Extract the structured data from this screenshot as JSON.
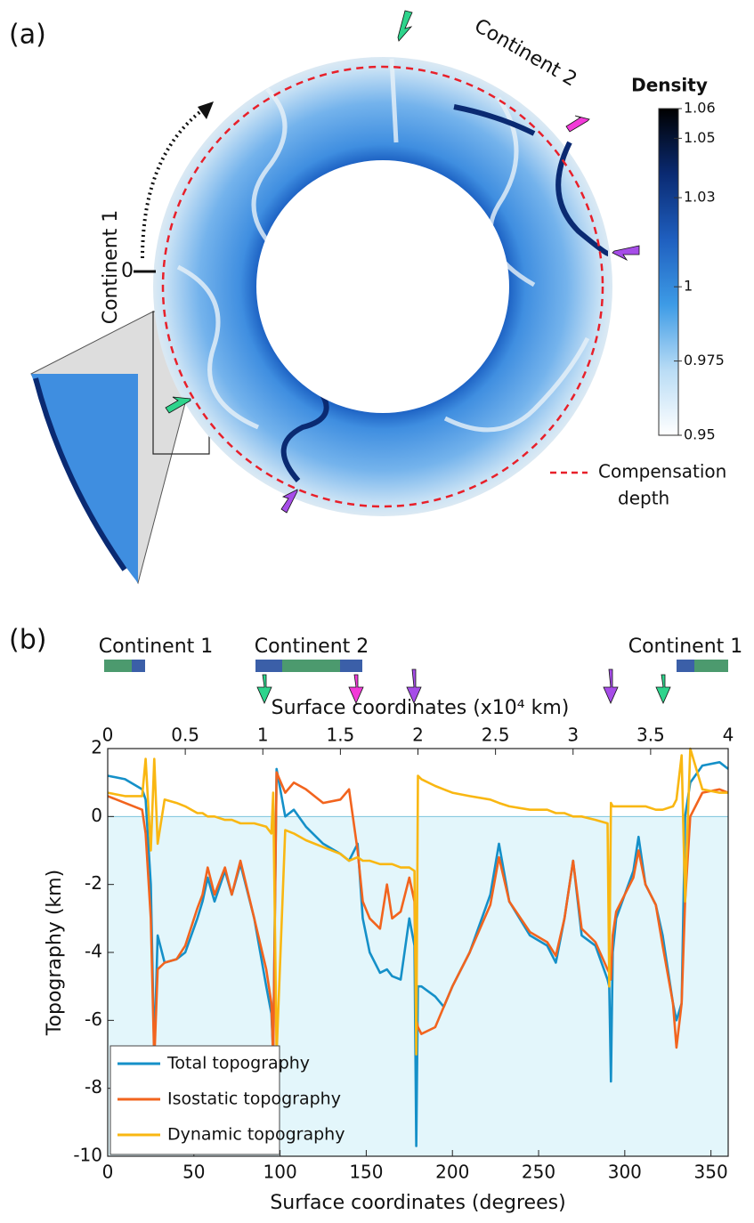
{
  "figure": {
    "panel_a_label": "(a)",
    "panel_b_label": "(b)",
    "continent_2_label": "Continent 2",
    "continent_1_label": "Continent 1",
    "origin_label": "0",
    "compensation_label": [
      "Compensation",
      "depth"
    ]
  },
  "chart_data": [
    {
      "type": "colorbar",
      "title": "Density",
      "clim": [
        0.95,
        1.06
      ],
      "ticks": [
        0.95,
        0.975,
        1,
        1.03,
        1.05,
        1.06
      ],
      "colors": [
        "#ffffff",
        "#b9dcf5",
        "#3d9be6",
        "#1f5fbf",
        "#0a2a72",
        "#000000"
      ]
    },
    {
      "type": "line",
      "xlabel": "Surface coordinates (degrees)",
      "ylabel": "Topography (km)",
      "x2label": "Surface coordinates (x10⁴ km)",
      "annotations": [
        "Continent 1",
        "Continent 2",
        "Continent 1"
      ],
      "xlim": [
        0,
        360
      ],
      "xticks": [
        0,
        50,
        100,
        150,
        200,
        250,
        300,
        350
      ],
      "x2lim": [
        0,
        4
      ],
      "x2ticks": [
        0,
        0.5,
        1,
        1.5,
        2,
        2.5,
        3,
        3.5,
        4
      ],
      "ylim": [
        -10,
        2
      ],
      "yticks": [
        -10,
        -8,
        -6,
        -4,
        -2,
        0,
        2
      ],
      "below_zero_fill": "#e3f6fb",
      "legend": "lower left",
      "x": [
        0,
        10,
        20,
        22,
        25,
        27,
        29,
        33,
        40,
        45,
        52,
        55,
        58,
        62,
        68,
        72,
        77,
        85,
        92,
        95,
        96,
        98,
        103,
        108,
        115,
        125,
        135,
        140,
        145,
        148,
        152,
        158,
        162,
        165,
        170,
        175,
        178,
        179,
        180,
        182,
        190,
        195,
        200,
        210,
        222,
        227,
        233,
        245,
        255,
        260,
        265,
        270,
        275,
        283,
        290,
        291,
        292,
        293,
        295,
        300,
        305,
        308,
        312,
        318,
        322,
        328,
        330,
        333,
        335,
        338,
        345,
        355,
        360
      ],
      "series": [
        {
          "name": "Total topography",
          "color": "#1590c8",
          "values": [
            1.2,
            1.1,
            0.8,
            0.5,
            -2,
            -7,
            -3.5,
            -4.3,
            -4.2,
            -4,
            -3,
            -2.5,
            -1.8,
            -2.5,
            -1.6,
            -2.3,
            -1.4,
            -3,
            -5,
            -5.8,
            -7,
            1.4,
            0,
            0.2,
            -0.3,
            -0.8,
            -1.1,
            -1.3,
            -0.8,
            -3,
            -4,
            -4.6,
            -4.5,
            -4.7,
            -4.8,
            -3,
            -3.8,
            -9.7,
            -5,
            -5,
            -5.3,
            -5.6,
            -5,
            -4,
            -2.3,
            -0.8,
            -2.5,
            -3.5,
            -3.8,
            -4.3,
            -3,
            -1.3,
            -3.5,
            -3.8,
            -4.8,
            -5,
            -7.8,
            -4,
            -3,
            -2.3,
            -1.6,
            -0.6,
            -2,
            -2.6,
            -3.5,
            -5.5,
            -6,
            -5.5,
            0,
            1,
            1.5,
            1.6,
            1.4
          ]
        },
        {
          "name": "Isostatic topography",
          "color": "#f2641e",
          "values": [
            0.6,
            0.4,
            0.2,
            -0.5,
            -3,
            -7.2,
            -4.5,
            -4.3,
            -4.2,
            -3.8,
            -2.7,
            -2.3,
            -1.5,
            -2.3,
            -1.5,
            -2.3,
            -1.3,
            -3,
            -4.5,
            -5.5,
            -7.2,
            1.3,
            0.7,
            1,
            0.8,
            0.4,
            0.5,
            0.8,
            -1,
            -2.5,
            -3,
            -3.3,
            -2,
            -3,
            -2.8,
            -1.8,
            -2.5,
            -6,
            -6.2,
            -6.4,
            -6.2,
            -5.6,
            -5,
            -4,
            -2.6,
            -1.2,
            -2.5,
            -3.4,
            -3.7,
            -4.1,
            -3,
            -1.3,
            -3.3,
            -3.7,
            -4.5,
            -4.6,
            -4.8,
            -3.5,
            -2.8,
            -2.3,
            -1.8,
            -1,
            -2,
            -2.6,
            -3.8,
            -5.5,
            -6.8,
            -5.5,
            -2.5,
            0,
            0.7,
            0.8,
            0.7
          ]
        },
        {
          "name": "Dynamic topography",
          "color": "#f9b712",
          "values": [
            0.7,
            0.6,
            0.6,
            1.7,
            -1,
            1.7,
            -0.8,
            0.5,
            0.4,
            0.3,
            0.1,
            0.1,
            0,
            0,
            -0.1,
            -0.1,
            -0.2,
            -0.2,
            -0.3,
            -0.5,
            0.7,
            -7,
            -0.4,
            -0.5,
            -0.7,
            -0.9,
            -1.1,
            -1.3,
            -1.2,
            -1.3,
            -1.3,
            -1.4,
            -1.4,
            -1.4,
            -1.5,
            -1.5,
            -1.6,
            -7,
            1.2,
            1.1,
            0.9,
            0.8,
            0.7,
            0.6,
            0.5,
            0.4,
            0.3,
            0.2,
            0.2,
            0.1,
            0.1,
            0,
            0,
            -0.1,
            -0.2,
            -5,
            0.4,
            0.3,
            0.3,
            0.3,
            0.3,
            0.3,
            0.3,
            0.2,
            0.2,
            0.3,
            0.5,
            1.8,
            -2.5,
            2,
            0.8,
            0.7,
            0.7
          ]
        }
      ]
    }
  ]
}
